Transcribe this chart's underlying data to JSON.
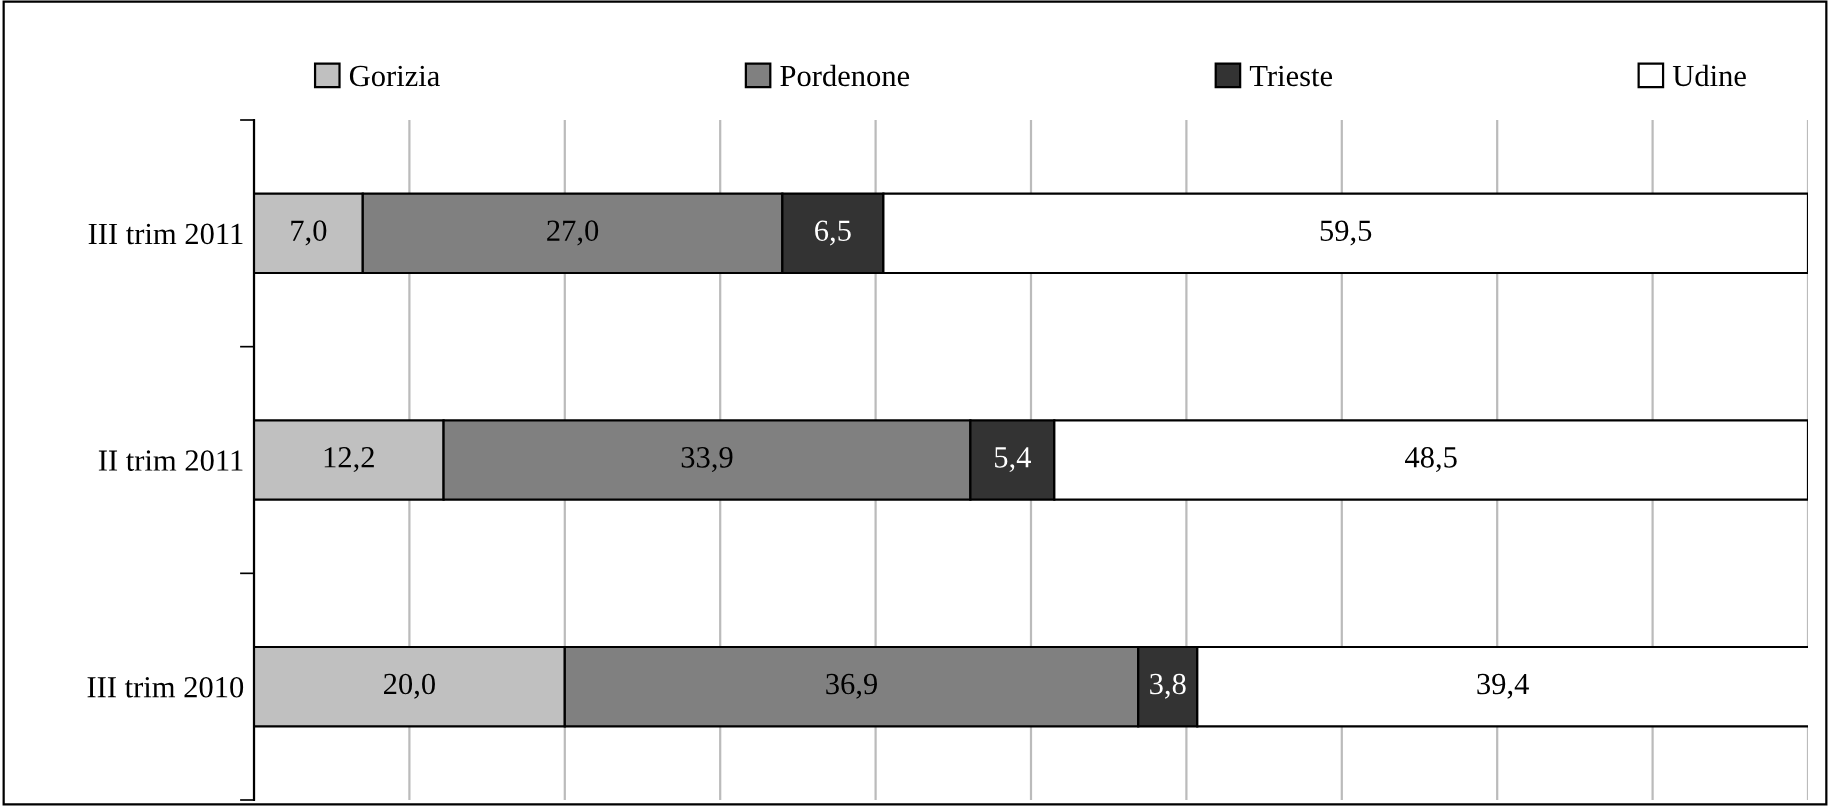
{
  "chart_data": {
    "type": "bar",
    "orientation": "horizontal",
    "stacked": true,
    "categories": [
      "III trim 2011",
      "II trim 2011",
      "III trim 2010"
    ],
    "series": [
      {
        "name": "Gorizia",
        "color": "#c0c0c0",
        "values": [
          7.0,
          12.2,
          20.0
        ],
        "value_labels": [
          "7,0",
          "12,2",
          "20,0"
        ]
      },
      {
        "name": "Pordenone",
        "color": "#808080",
        "values": [
          27.0,
          33.9,
          36.9
        ],
        "value_labels": [
          "27,0",
          "33,9",
          "36,9"
        ]
      },
      {
        "name": "Trieste",
        "color": "#333333",
        "values": [
          6.5,
          5.4,
          3.8
        ],
        "value_labels": [
          "6,5",
          "5,4",
          "3,8"
        ]
      },
      {
        "name": "Udine",
        "color": "#ffffff",
        "values": [
          59.5,
          48.5,
          39.4
        ],
        "value_labels": [
          "59,5",
          "48,5",
          "39,4"
        ]
      }
    ],
    "xlim": [
      0,
      100
    ],
    "xticks": [
      {
        "value": 0,
        "label": null
      },
      {
        "value": 10,
        "label": null
      },
      {
        "value": 20,
        "label": null
      },
      {
        "value": 30,
        "label": null
      },
      {
        "value": 40,
        "label": null
      },
      {
        "value": 50,
        "label": null
      },
      {
        "value": 60,
        "label": null
      },
      {
        "value": 70,
        "label": null
      },
      {
        "value": 80,
        "label": null
      },
      {
        "value": 90,
        "label": null
      },
      {
        "value": 100,
        "label": null
      }
    ],
    "grid": "x",
    "legend": "top",
    "tick_labels": "y"
  }
}
